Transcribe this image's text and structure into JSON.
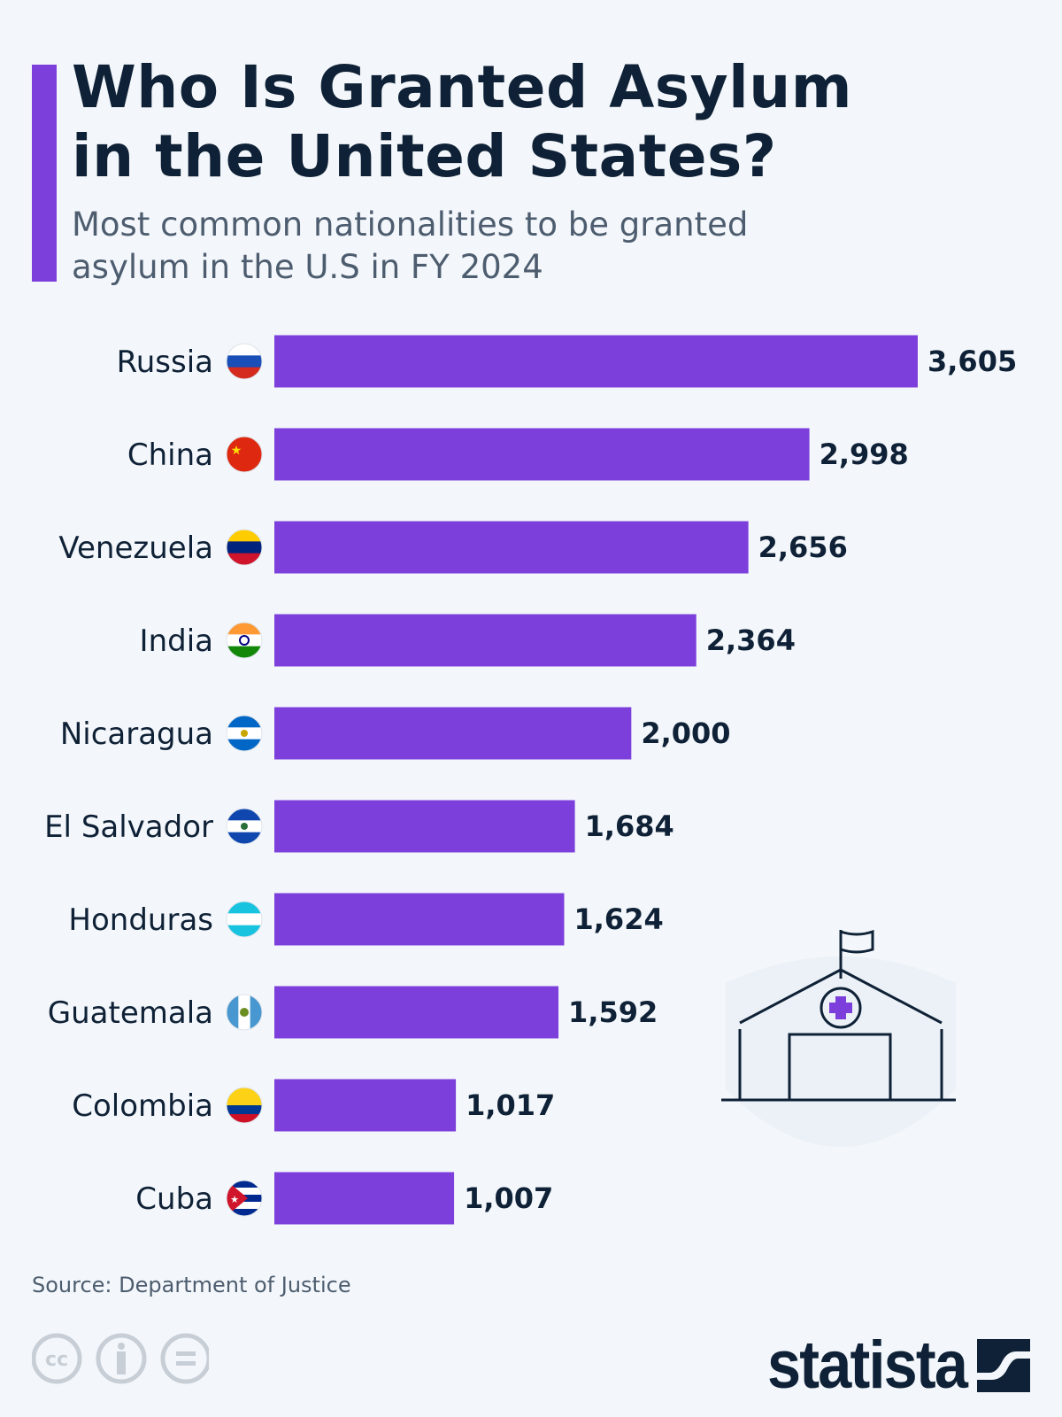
{
  "header": {
    "title_line1": "Who Is Granted Asylum",
    "title_line2": "in the United States?",
    "subtitle": "Most common nationalities to be granted asylum in the U.S in FY 2024"
  },
  "chart_data": {
    "type": "bar",
    "orientation": "horizontal",
    "categories": [
      "Russia",
      "China",
      "Venezuela",
      "India",
      "Nicaragua",
      "El Salvador",
      "Honduras",
      "Guatemala",
      "Colombia",
      "Cuba"
    ],
    "values": [
      3605,
      2998,
      2656,
      2364,
      2000,
      1684,
      1624,
      1592,
      1017,
      1007
    ],
    "value_labels": [
      "3,605",
      "2,998",
      "2,656",
      "2,364",
      "2,000",
      "1,684",
      "1,624",
      "1,592",
      "1,017",
      "1,007"
    ],
    "flag_icons": [
      "russia-flag-icon",
      "china-flag-icon",
      "venezuela-flag-icon",
      "india-flag-icon",
      "nicaragua-flag-icon",
      "el-salvador-flag-icon",
      "honduras-flag-icon",
      "guatemala-flag-icon",
      "colombia-flag-icon",
      "cuba-flag-icon"
    ],
    "xlim": [
      0,
      3605
    ],
    "grid": false,
    "bar_color": "#7c3fdb"
  },
  "footer": {
    "source": "Source: Department of Justice",
    "logo": "statista"
  },
  "colors": {
    "accent": "#7c3fdb",
    "text": "#0f2136",
    "subtitle": "#4d5d6f",
    "background": "#f3f7fb"
  }
}
